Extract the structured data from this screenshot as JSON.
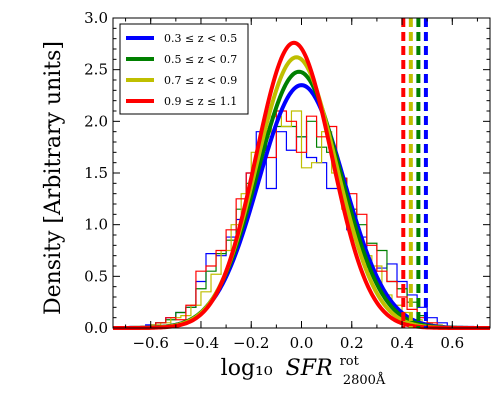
{
  "chart_data": {
    "type": "line",
    "xlabel": "log₁₀",
    "xlabel_var": "SFR",
    "xlabel_sup": "rot",
    "xlabel_sub": "2800Å",
    "ylabel": "Density [Arbitrary units]",
    "xlim": [
      -0.75,
      0.75
    ],
    "ylim": [
      0,
      3.0
    ],
    "x_ticks": [
      -0.6,
      -0.4,
      -0.2,
      0.0,
      0.2,
      0.4,
      0.6
    ],
    "x_tick_labels": [
      "−0.6",
      "−0.4",
      "−0.2",
      "0.0",
      "0.2",
      "0.4",
      "0.6"
    ],
    "y_ticks": [
      0,
      0.5,
      1.0,
      1.5,
      2.0,
      2.5,
      3.0
    ],
    "y_tick_labels": [
      "0.0",
      "0.5",
      "1.0",
      "1.5",
      "2.0",
      "2.5",
      "3.0"
    ],
    "grid": false,
    "legend_position": "top-left",
    "series": [
      {
        "name": "0.3 ≤ z < 0.5",
        "color": "#0000ff",
        "gaussian_fit": {
          "mean": 0.0,
          "sigma": 0.17,
          "peak": 2.35
        },
        "vline_x": 0.495,
        "histogram": {
          "edges": [
            -0.62,
            -0.58,
            -0.54,
            -0.5,
            -0.46,
            -0.42,
            -0.38,
            -0.34,
            -0.3,
            -0.26,
            -0.22,
            -0.18,
            -0.14,
            -0.1,
            -0.06,
            -0.02,
            0.02,
            0.06,
            0.1,
            0.14,
            0.18,
            0.22,
            0.26,
            0.3,
            0.34,
            0.38,
            0.42,
            0.46,
            0.5,
            0.54,
            0.58
          ],
          "counts": [
            0.03,
            0.05,
            0.1,
            0.15,
            0.2,
            0.45,
            0.72,
            0.7,
            0.88,
            1.05,
            1.5,
            1.9,
            1.35,
            1.9,
            1.72,
            1.85,
            1.65,
            1.6,
            1.35,
            1.35,
            0.95,
            0.88,
            0.55,
            0.58,
            0.62,
            0.45,
            0.32,
            0.2,
            0.1,
            0.05
          ]
        }
      },
      {
        "name": "0.5 ≤ z < 0.7",
        "color": "#008000",
        "gaussian_fit": {
          "mean": -0.01,
          "sigma": 0.165,
          "peak": 2.48
        },
        "vline_x": 0.465,
        "histogram": {
          "edges": [
            -0.58,
            -0.54,
            -0.5,
            -0.46,
            -0.42,
            -0.38,
            -0.34,
            -0.3,
            -0.26,
            -0.22,
            -0.18,
            -0.14,
            -0.1,
            -0.06,
            -0.02,
            0.02,
            0.06,
            0.1,
            0.14,
            0.18,
            0.22,
            0.26,
            0.3,
            0.34,
            0.38,
            0.42,
            0.46,
            0.5
          ],
          "counts": [
            0.05,
            0.08,
            0.15,
            0.2,
            0.38,
            0.55,
            0.72,
            0.85,
            1.15,
            1.4,
            1.72,
            1.9,
            1.95,
            1.95,
            1.85,
            2.0,
            1.75,
            1.7,
            1.45,
            1.15,
            1.0,
            0.82,
            0.75,
            0.45,
            0.38,
            0.25,
            0.12
          ]
        }
      },
      {
        "name": "0.7 ≤ z < 0.9",
        "color": "#bfbf00",
        "gaussian_fit": {
          "mean": -0.02,
          "sigma": 0.158,
          "peak": 2.62
        },
        "vline_x": 0.435,
        "histogram": {
          "edges": [
            -0.6,
            -0.56,
            -0.52,
            -0.48,
            -0.44,
            -0.4,
            -0.36,
            -0.32,
            -0.28,
            -0.24,
            -0.2,
            -0.16,
            -0.12,
            -0.08,
            -0.04,
            0.0,
            0.04,
            0.08,
            0.12,
            0.16,
            0.2,
            0.24,
            0.28,
            0.32,
            0.36,
            0.4,
            0.44,
            0.48,
            0.52,
            0.56
          ],
          "counts": [
            0.03,
            0.05,
            0.1,
            0.12,
            0.22,
            0.35,
            0.52,
            0.75,
            1.0,
            1.3,
            1.7,
            1.85,
            2.05,
            1.95,
            2.1,
            1.55,
            1.6,
            1.9,
            1.5,
            1.15,
            0.85,
            0.7,
            0.6,
            0.32,
            0.22,
            0.15,
            0.08,
            0.05,
            0.03
          ]
        }
      },
      {
        "name": "0.9 ≤ z ≤ 1.1",
        "color": "#ff0000",
        "gaussian_fit": {
          "mean": -0.03,
          "sigma": 0.15,
          "peak": 2.76
        },
        "vline_x": 0.405,
        "histogram": {
          "edges": [
            -0.58,
            -0.54,
            -0.5,
            -0.46,
            -0.42,
            -0.38,
            -0.34,
            -0.3,
            -0.26,
            -0.22,
            -0.18,
            -0.14,
            -0.1,
            -0.06,
            -0.02,
            0.02,
            0.06,
            0.1,
            0.14,
            0.18,
            0.22,
            0.26,
            0.3,
            0.34,
            0.38,
            0.42,
            0.46,
            0.5,
            0.54
          ],
          "counts": [
            0.05,
            0.1,
            0.08,
            0.22,
            0.55,
            0.6,
            0.75,
            0.95,
            1.25,
            1.5,
            1.7,
            1.65,
            2.1,
            2.0,
            1.7,
            2.05,
            1.85,
            1.95,
            1.45,
            1.3,
            1.1,
            0.8,
            0.55,
            0.45,
            0.3,
            0.18,
            0.1,
            0.05
          ]
        }
      }
    ]
  }
}
